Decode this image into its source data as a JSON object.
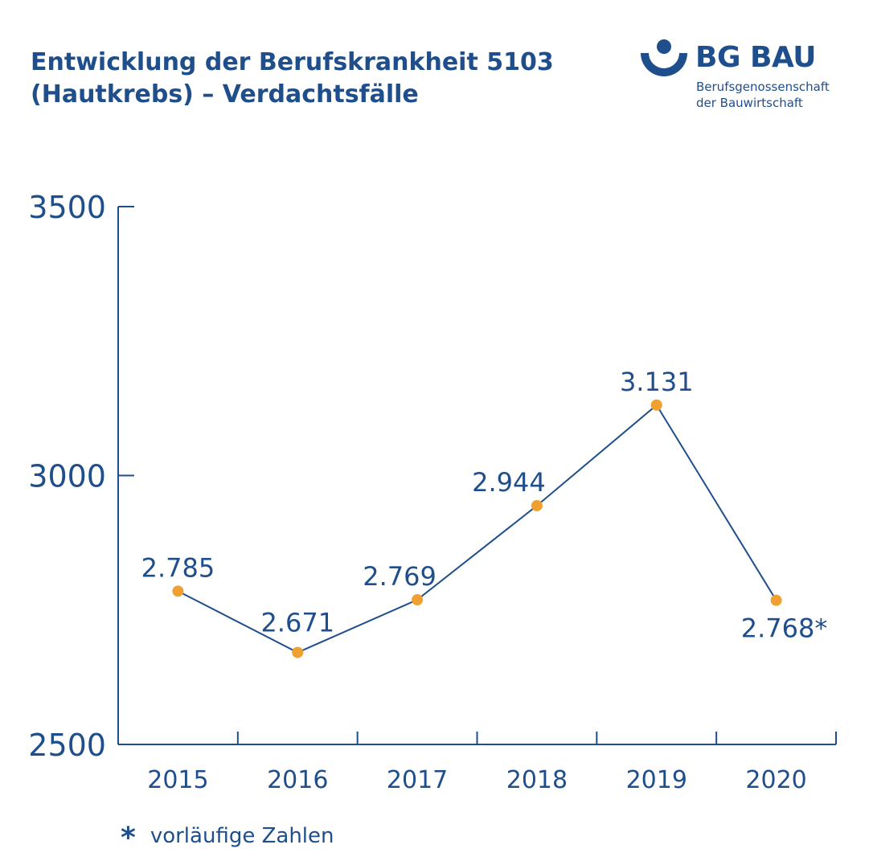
{
  "header": {
    "title_line1": "Entwicklung der Berufskrankheit 5103",
    "title_line2": "(Hautkrebs) – Verdachtsfälle"
  },
  "logo": {
    "brand": "BG BAU",
    "line1": "Berufsgenossenschaft",
    "line2": "der Bauwirtschaft",
    "icon": "bg-bau-logo-icon",
    "colors": {
      "primary": "#1f4e8c"
    }
  },
  "footnote": {
    "symbol": "*",
    "text": "vorläufige Zahlen"
  },
  "chart_data": {
    "type": "line",
    "title": "",
    "xlabel": "",
    "ylabel": "",
    "categories": [
      "2015",
      "2016",
      "2017",
      "2018",
      "2019",
      "2020"
    ],
    "values": [
      2785,
      2671,
      2769,
      2944,
      3131,
      2768
    ],
    "data_labels": [
      "2.785",
      "2.671",
      "2.769",
      "2.944",
      "3.131",
      "2.768*"
    ],
    "ylim": [
      2500,
      3500
    ],
    "yticks": [
      2500,
      3000,
      3500
    ],
    "ytick_labels": [
      "2500",
      "3000",
      "3500"
    ],
    "grid": false,
    "colors": {
      "line": "#1f4e8c",
      "marker": "#f0a030",
      "text": "#1f4e8c"
    }
  }
}
